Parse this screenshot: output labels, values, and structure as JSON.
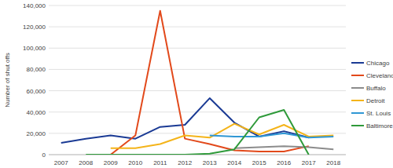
{
  "chart_data": {
    "type": "line",
    "y_label": "Number of shut offs",
    "categories": [
      "2007",
      "2008",
      "2009",
      "2010",
      "2011",
      "2012",
      "2013",
      "2014",
      "2015",
      "2016",
      "2017",
      "2018"
    ],
    "ylim": [
      0,
      140000
    ],
    "yticks": [
      0,
      {
        "value": 20000,
        "label": "20,000"
      },
      {
        "value": 40000,
        "label": "40,000"
      },
      {
        "value": 60000,
        "label": "60,000"
      },
      {
        "value": 80000,
        "label": "80,000"
      },
      {
        "value": 100000,
        "label": "100,000"
      },
      {
        "value": 120000,
        "label": "120,000"
      },
      {
        "value": 140000,
        "label": "140,000"
      }
    ],
    "grid": true,
    "legend": "right",
    "series": [
      {
        "name": "Chicago",
        "color": "#1a3a94",
        "values": [
          11000,
          15000,
          18000,
          15000,
          26000,
          28000,
          53000,
          30000,
          17000,
          22000,
          16000,
          null
        ]
      },
      {
        "name": "Cleveland",
        "color": "#e2491b",
        "values": [
          null,
          null,
          0,
          18000,
          135000,
          15000,
          10000,
          4000,
          3000,
          3000,
          8000,
          null
        ]
      },
      {
        "name": "Buffalo",
        "color": "#8c8c8c",
        "values": [
          null,
          null,
          null,
          null,
          null,
          null,
          null,
          6000,
          7000,
          8000,
          7000,
          5000
        ]
      },
      {
        "name": "Detroit",
        "color": "#f4b41a",
        "values": [
          null,
          null,
          6000,
          6000,
          10000,
          18000,
          16000,
          29000,
          19000,
          28000,
          17000,
          18000
        ]
      },
      {
        "name": "St. Louis",
        "color": "#2f97d4",
        "values": [
          null,
          null,
          null,
          null,
          null,
          null,
          18000,
          17000,
          17000,
          20000,
          16000,
          17000
        ]
      },
      {
        "name": "Baltimore",
        "color": "#2f9a3a",
        "values": [
          null,
          0,
          0,
          0,
          0,
          0,
          1000,
          5000,
          35000,
          42000,
          0,
          null
        ]
      }
    ]
  }
}
